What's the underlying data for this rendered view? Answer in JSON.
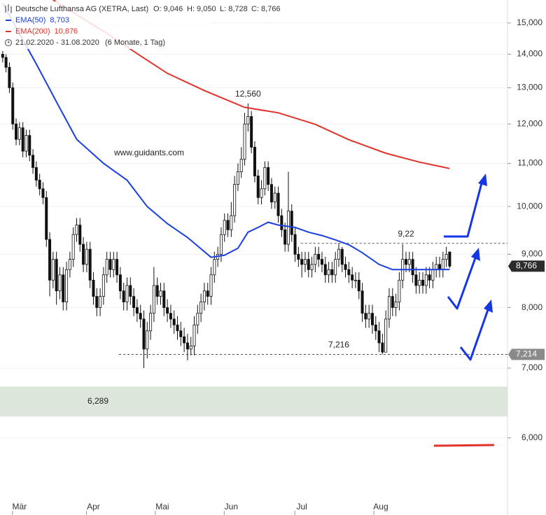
{
  "chart_data": {
    "type": "candlestick",
    "header": {
      "title": "Deutsche Lufthansa AG (XETRA, Last)",
      "quote": [
        "O: 9,046",
        "H: 9,050",
        "L: 8,728",
        "C: 8,766"
      ],
      "period": "21.02.2020 - 31.08.2020",
      "interval": "(6 Monate, 1 Tag)"
    },
    "watermark": "www.guidants.com",
    "open": [
      14.0,
      13.9,
      13.6,
      13.0,
      12.0,
      11.6,
      11.9,
      11.3,
      11.7,
      11.2,
      10.9,
      10.6,
      10.4,
      10.2,
      9.3,
      8.5,
      8.9,
      8.3,
      8.6,
      8.1,
      8.7,
      8.9,
      9.4,
      9.6,
      9.2,
      8.8,
      9.1,
      8.5,
      8.2,
      8.0,
      8.2,
      8.6,
      8.9,
      8.7,
      8.9,
      8.6,
      8.3,
      8.1,
      8.4,
      8.2,
      8.0,
      7.9,
      7.8,
      7.3,
      7.6,
      7.9,
      8.4,
      8.2,
      8.3,
      8.0,
      7.9,
      7.8,
      7.7,
      7.6,
      7.5,
      7.4,
      7.3,
      7.35,
      7.7,
      7.9,
      8.1,
      8.3,
      8.2,
      8.6,
      8.9,
      9.0,
      9.4,
      9.7,
      9.5,
      9.8,
      10.5,
      10.8,
      11.1,
      12.0,
      12.2,
      11.4,
      10.7,
      10.2,
      10.4,
      10.9,
      10.5,
      10.1,
      10.3,
      9.8,
      9.5,
      9.2,
      9.9,
      9.4,
      9.0,
      8.9,
      8.8,
      8.9,
      8.7,
      8.8,
      9.0,
      8.9,
      8.8,
      8.6,
      8.7,
      8.6,
      8.9,
      9.1,
      8.8,
      8.7,
      8.6,
      8.5,
      8.5,
      8.3,
      7.9,
      7.8,
      7.9,
      7.7,
      7.6,
      7.4,
      7.25,
      7.8,
      8.2,
      8.0,
      8.1,
      8.5,
      8.9,
      8.8,
      8.9,
      8.6,
      8.4,
      8.5,
      8.4,
      8.6,
      8.5,
      8.7,
      8.8,
      8.7,
      8.9,
      9.046
    ],
    "high": [
      14.1,
      14.0,
      13.75,
      13.15,
      12.15,
      12.05,
      12.05,
      11.85,
      11.85,
      11.35,
      11.05,
      10.75,
      10.55,
      10.35,
      9.45,
      9.05,
      9.05,
      8.75,
      8.75,
      8.85,
      9.05,
      9.55,
      9.75,
      9.75,
      9.35,
      9.25,
      9.25,
      8.65,
      8.35,
      8.35,
      8.75,
      9.05,
      9.05,
      9.05,
      9.05,
      8.75,
      8.45,
      8.55,
      8.55,
      8.35,
      8.15,
      8.05,
      7.95,
      7.75,
      8.05,
      8.75,
      8.55,
      8.45,
      8.45,
      8.15,
      8.05,
      7.95,
      7.85,
      7.75,
      7.65,
      7.55,
      7.5,
      7.85,
      8.05,
      8.25,
      8.45,
      8.45,
      8.75,
      9.05,
      9.15,
      9.55,
      9.85,
      9.85,
      10.1,
      10.7,
      11.0,
      11.4,
      12.3,
      12.56,
      12.35,
      11.55,
      10.85,
      10.6,
      11.05,
      11.05,
      10.65,
      10.45,
      10.45,
      9.95,
      9.65,
      10.8,
      10.05,
      9.55,
      9.15,
      9.05,
      9.05,
      9.05,
      8.95,
      9.15,
      9.15,
      9.05,
      8.95,
      8.85,
      8.85,
      9.05,
      9.22,
      9.15,
      8.95,
      8.85,
      8.75,
      8.65,
      8.65,
      8.45,
      8.05,
      8.05,
      8.05,
      7.85,
      7.75,
      7.55,
      7.95,
      8.35,
      8.35,
      8.25,
      8.65,
      9.2,
      9.05,
      9.05,
      9.05,
      8.75,
      8.65,
      8.65,
      8.75,
      8.75,
      8.85,
      8.95,
      8.95,
      9.05,
      9.15,
      9.05
    ],
    "low": [
      13.75,
      13.45,
      12.85,
      11.85,
      11.45,
      11.45,
      11.15,
      11.15,
      11.05,
      10.75,
      10.45,
      10.25,
      10.05,
      9.15,
      8.2,
      8.35,
      8.05,
      8.15,
      7.95,
      7.95,
      8.55,
      8.75,
      9.25,
      9.05,
      8.65,
      8.65,
      8.35,
      8.05,
      7.85,
      7.85,
      8.05,
      8.45,
      8.55,
      8.55,
      8.45,
      8.15,
      7.95,
      7.95,
      8.05,
      7.85,
      7.75,
      7.65,
      7.0,
      7.15,
      7.45,
      7.75,
      8.05,
      8.05,
      7.85,
      7.75,
      7.65,
      7.55,
      7.45,
      7.35,
      7.25,
      7.12,
      7.2,
      7.2,
      7.55,
      7.75,
      7.95,
      8.05,
      8.05,
      8.45,
      8.75,
      8.85,
      9.25,
      9.35,
      9.35,
      9.65,
      10.35,
      10.65,
      10.95,
      11.8,
      11.25,
      10.55,
      10.05,
      10.05,
      10.25,
      10.35,
      9.95,
      9.95,
      9.65,
      9.35,
      9.05,
      9.05,
      9.25,
      8.85,
      8.75,
      8.55,
      8.65,
      8.55,
      8.55,
      8.65,
      8.75,
      8.65,
      8.45,
      8.45,
      8.45,
      8.45,
      8.75,
      8.65,
      8.55,
      8.45,
      8.35,
      8.35,
      8.15,
      7.75,
      7.65,
      7.65,
      7.55,
      7.45,
      7.25,
      7.216,
      7.25,
      7.65,
      7.85,
      7.85,
      7.95,
      8.35,
      8.65,
      8.65,
      8.45,
      8.25,
      8.25,
      8.25,
      8.25,
      8.35,
      8.35,
      8.55,
      8.55,
      8.55,
      8.75,
      8.728
    ],
    "close": [
      13.9,
      13.6,
      13.0,
      12.0,
      11.6,
      11.9,
      11.3,
      11.7,
      11.2,
      10.9,
      10.6,
      10.4,
      10.2,
      9.3,
      8.5,
      8.9,
      8.3,
      8.6,
      8.1,
      8.7,
      8.9,
      9.4,
      9.6,
      9.2,
      8.8,
      9.1,
      8.5,
      8.2,
      8.0,
      8.2,
      8.6,
      8.9,
      8.7,
      8.9,
      8.6,
      8.3,
      8.1,
      8.4,
      8.2,
      8.0,
      7.9,
      7.8,
      7.3,
      7.6,
      7.9,
      8.4,
      8.2,
      8.3,
      8.0,
      7.9,
      7.8,
      7.7,
      7.6,
      7.5,
      7.4,
      7.3,
      7.35,
      7.7,
      7.9,
      8.1,
      8.3,
      8.2,
      8.6,
      8.9,
      9.0,
      9.4,
      9.7,
      9.5,
      9.8,
      10.5,
      10.8,
      11.1,
      12.0,
      12.2,
      11.4,
      10.7,
      10.2,
      10.4,
      10.9,
      10.5,
      10.1,
      10.3,
      9.8,
      9.5,
      9.2,
      9.9,
      9.4,
      9.0,
      8.9,
      8.8,
      8.9,
      8.7,
      8.8,
      9.0,
      8.9,
      8.8,
      8.6,
      8.7,
      8.6,
      8.9,
      9.1,
      8.8,
      8.7,
      8.6,
      8.5,
      8.5,
      8.3,
      7.9,
      7.8,
      7.9,
      7.7,
      7.6,
      7.4,
      7.25,
      7.8,
      8.2,
      8.0,
      8.1,
      8.5,
      8.9,
      8.8,
      8.9,
      8.6,
      8.4,
      8.5,
      8.4,
      8.6,
      8.5,
      8.7,
      8.8,
      8.7,
      8.9,
      9.0,
      8.766
    ],
    "up_color": "#ffffff",
    "down_color": "#111111",
    "series": [
      {
        "name": "EMA(50)",
        "last_label": "8,703",
        "color": "#1a3fe0",
        "x": [
          0,
          10,
          16,
          22,
          30,
          37,
          43,
          49,
          55,
          62,
          66,
          70,
          73,
          76,
          79,
          82,
          87,
          91,
          95,
          99,
          103,
          107,
          112,
          116,
          120,
          124,
          128,
          133
        ],
        "values": [
          15.67,
          13.7,
          12.6,
          11.6,
          11.0,
          10.6,
          10.0,
          9.63,
          9.34,
          8.94,
          8.98,
          9.12,
          9.45,
          9.55,
          9.66,
          9.6,
          9.55,
          9.45,
          9.38,
          9.29,
          9.19,
          9.03,
          8.8,
          8.7,
          8.7,
          8.7,
          8.7,
          8.703
        ]
      },
      {
        "name": "EMA(200)",
        "last_label": "10,876",
        "color": "#e0332a",
        "x": [
          15,
          30,
          41,
          49,
          60,
          72,
          82,
          93,
          103,
          114,
          124,
          133
        ],
        "values": [
          15.78,
          14.73,
          13.95,
          13.42,
          12.92,
          12.45,
          12.3,
          11.99,
          11.59,
          11.25,
          11.03,
          10.876
        ]
      }
    ],
    "xlim": [
      -0.8,
      150.2
    ],
    "xticks": [
      {
        "value": 5,
        "label": "Mär"
      },
      {
        "value": 27,
        "label": "Apr"
      },
      {
        "value": 47.5,
        "label": "Mai"
      },
      {
        "value": 68,
        "label": "Jun"
      },
      {
        "value": 89,
        "label": "Jul"
      },
      {
        "value": 112.5,
        "label": "Aug"
      }
    ],
    "ylim": [
      5.06,
      15.78
    ],
    "log_scale": true,
    "grid": true,
    "yticks": [
      {
        "value": 6,
        "label": "6,000"
      },
      {
        "value": 7,
        "label": "7,000"
      },
      {
        "value": 8,
        "label": "8,000"
      },
      {
        "value": 9,
        "label": "9,000"
      },
      {
        "value": 10,
        "label": "10,000"
      },
      {
        "value": 11,
        "label": "11,000"
      },
      {
        "value": 12,
        "label": "12,000"
      },
      {
        "value": 13,
        "label": "13,000"
      },
      {
        "value": 14,
        "label": "14,000"
      },
      {
        "value": 15,
        "label": "15,000"
      }
    ],
    "annotations": [
      {
        "text": "12,560",
        "x": 73,
        "y": 12.56
      },
      {
        "text": "9,22",
        "x": 120,
        "y": 9.22
      },
      {
        "text": "7,216",
        "x": 100,
        "y": 7.216
      }
    ],
    "hlines": [
      {
        "value": 9.22,
        "x": [
          88.7,
          150.2
        ]
      },
      {
        "value": 7.214,
        "x": [
          34.6,
          150.2
        ]
      }
    ],
    "price_tags": [
      {
        "value": 8.766,
        "label": "8,766",
        "color": "#2b2b2b"
      },
      {
        "value": 7.214,
        "label": "7,214",
        "color": "#8a8a8a"
      }
    ],
    "zone": {
      "low": 6.289,
      "high": 6.72,
      "label": "6,289",
      "color": "#dde6da"
    }
  }
}
